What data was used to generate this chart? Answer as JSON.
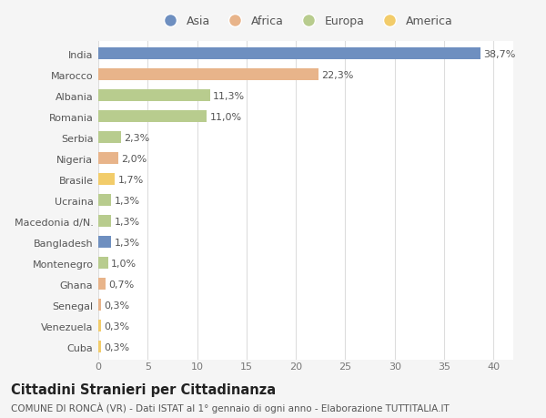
{
  "categories": [
    "India",
    "Marocco",
    "Albania",
    "Romania",
    "Serbia",
    "Nigeria",
    "Brasile",
    "Ucraina",
    "Macedonia d/N.",
    "Bangladesh",
    "Montenegro",
    "Ghana",
    "Senegal",
    "Venezuela",
    "Cuba"
  ],
  "values": [
    38.7,
    22.3,
    11.3,
    11.0,
    2.3,
    2.0,
    1.7,
    1.3,
    1.3,
    1.3,
    1.0,
    0.7,
    0.3,
    0.3,
    0.3
  ],
  "labels": [
    "38,7%",
    "22,3%",
    "11,3%",
    "11,0%",
    "2,3%",
    "2,0%",
    "1,7%",
    "1,3%",
    "1,3%",
    "1,3%",
    "1,0%",
    "0,7%",
    "0,3%",
    "0,3%",
    "0,3%"
  ],
  "continents": [
    "Asia",
    "Africa",
    "Europa",
    "Europa",
    "Europa",
    "Africa",
    "America",
    "Europa",
    "Europa",
    "Asia",
    "Europa",
    "Africa",
    "Africa",
    "America",
    "America"
  ],
  "continent_colors": {
    "Asia": "#6e8fc0",
    "Africa": "#e8b48a",
    "Europa": "#b8cc8e",
    "America": "#f2cc6a"
  },
  "legend_order": [
    "Asia",
    "Africa",
    "Europa",
    "America"
  ],
  "title": "Cittadini Stranieri per Cittadinanza",
  "subtitle": "COMUNE DI RONCÀ (VR) - Dati ISTAT al 1° gennaio di ogni anno - Elaborazione TUTTITALIA.IT",
  "xlim": [
    0,
    42
  ],
  "xticks": [
    0,
    5,
    10,
    15,
    20,
    25,
    30,
    35,
    40
  ],
  "figure_bg": "#f5f5f5",
  "plot_bg": "#ffffff",
  "grid_color": "#dddddd",
  "bar_height": 0.55,
  "label_fontsize": 8,
  "title_fontsize": 10.5,
  "subtitle_fontsize": 7.5,
  "legend_fontsize": 9,
  "ytick_fontsize": 8,
  "xtick_fontsize": 8
}
